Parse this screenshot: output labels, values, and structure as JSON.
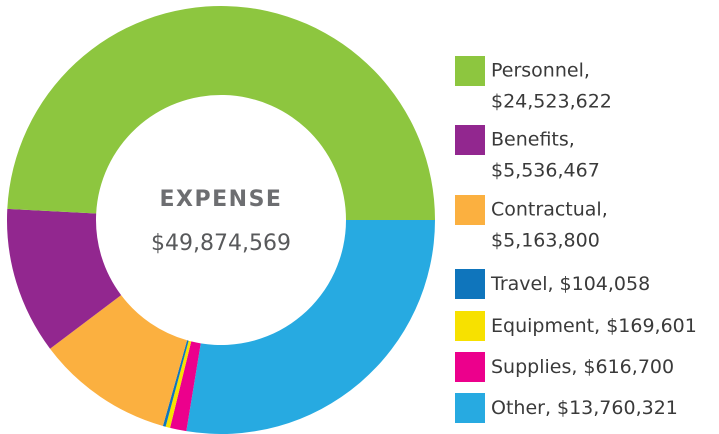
{
  "chart_data": {
    "type": "donut",
    "center_title": "EXPENSE",
    "center_value": "$49,874,569",
    "categories": [
      "Personnel,",
      "Benefits,",
      "Contractual,",
      "Travel,",
      "Equipment,",
      "Supplies,",
      "Other,"
    ],
    "values": [
      24523622,
      5536467,
      5163800,
      104058,
      169601,
      616700,
      13760321
    ],
    "value_labels": [
      "$24,523,622",
      "$5,536,467",
      "$5,163,800",
      "$104,058",
      "$169,601",
      "$616,700",
      "$13,760,321"
    ],
    "colors": [
      "#8dc63f",
      "#92278f",
      "#fbb040",
      "#0f75bc",
      "#f7e100",
      "#ec008c",
      "#27aae1"
    ],
    "legend": "right"
  }
}
